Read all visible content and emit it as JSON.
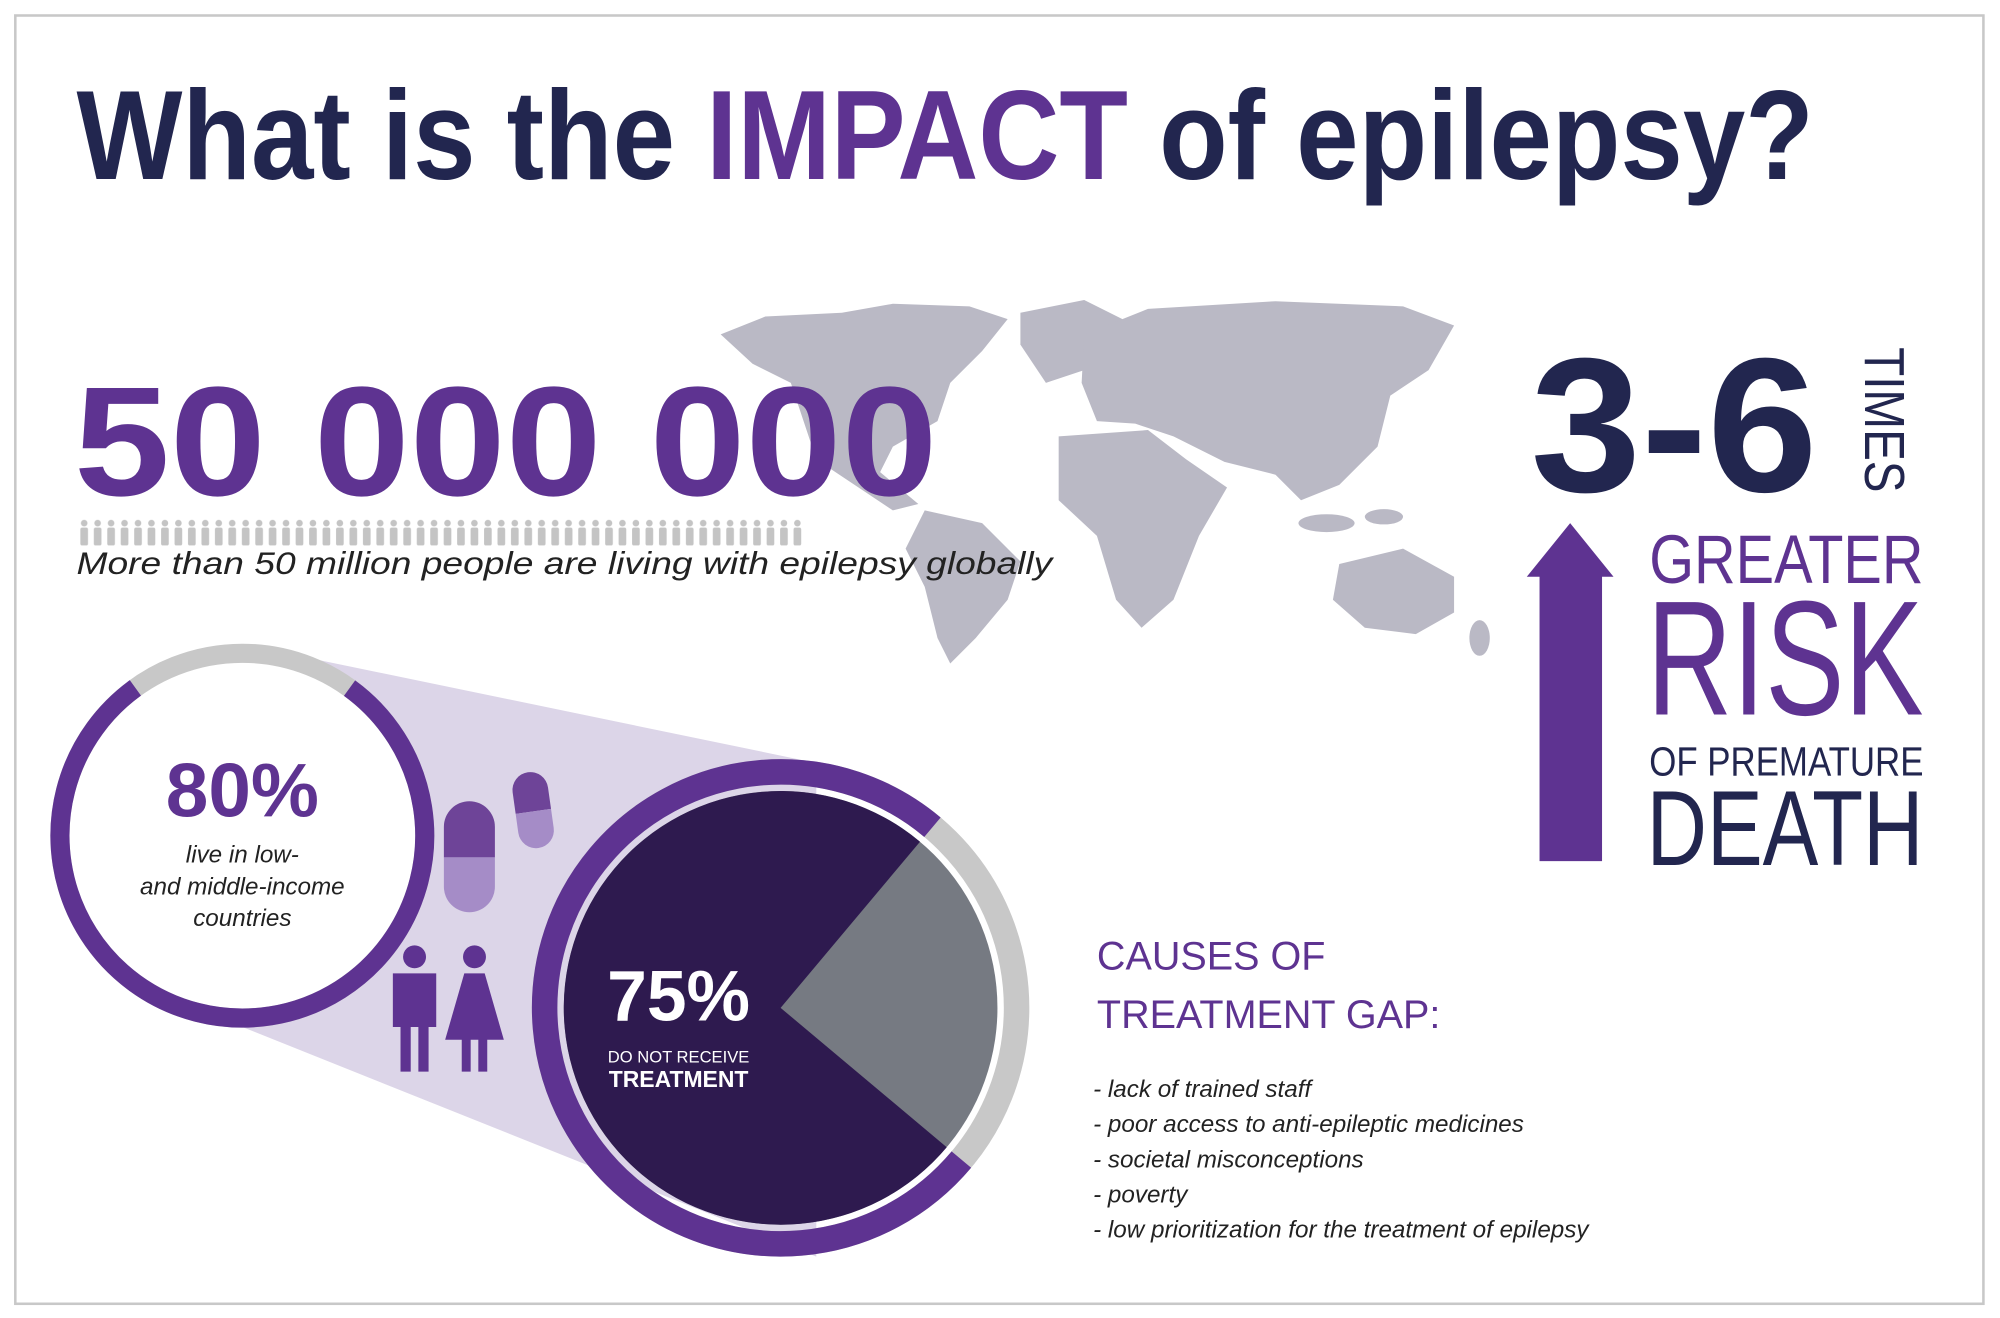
{
  "title": {
    "before": "What is the ",
    "highlight": "IMPACT",
    "after": " of epilepsy?"
  },
  "population": {
    "number": "50 000 000",
    "caption": "More than 50 million people are living with epilepsy globally"
  },
  "low_income": {
    "percent": {
      "value": 80,
      "label": "80%"
    },
    "lines": [
      "live in low-",
      "and middle-income",
      "countries"
    ]
  },
  "treatment": {
    "percent": {
      "value": 75,
      "label": "75%"
    },
    "line1": "DO NOT RECEIVE",
    "line2": "TREATMENT"
  },
  "risk": {
    "multiplier": "3-6",
    "unit": "TIMES",
    "lines": [
      "GREATER",
      "RISK",
      "OF PREMATURE",
      "DEATH"
    ]
  },
  "causes": {
    "heading": [
      "CAUSES OF",
      "TREATMENT GAP:"
    ],
    "items": [
      "- lack of trained staff",
      "- poor access to anti-epileptic medicines",
      "- societal misconceptions",
      "- poverty",
      "- low prioritization for the treatment of epilepsy"
    ]
  }
}
